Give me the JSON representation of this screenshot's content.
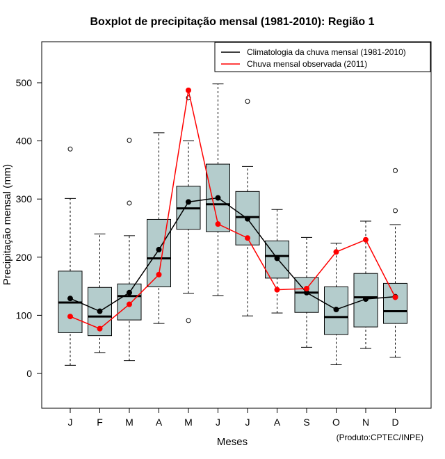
{
  "chart_data": {
    "type": "boxplot",
    "title": "Boxplot de precipitação mensal (1981-2010): Região 1",
    "xlabel": "Meses",
    "ylabel": "Precipitação mensal (mm)",
    "ylim": [
      -60,
      570
    ],
    "yticks": [
      0,
      100,
      200,
      300,
      400,
      500
    ],
    "categories": [
      "J",
      "F",
      "M",
      "A",
      "M",
      "J",
      "J",
      "A",
      "S",
      "O",
      "N",
      "D"
    ],
    "boxes": [
      {
        "min": 14,
        "q1": 70,
        "median": 122,
        "q3": 176,
        "max": 301,
        "outliers": [
          386
        ]
      },
      {
        "min": 36,
        "q1": 65,
        "median": 98,
        "q3": 148,
        "max": 240,
        "outliers": []
      },
      {
        "min": 22,
        "q1": 92,
        "median": 133,
        "q3": 154,
        "max": 237,
        "outliers": [
          293,
          401
        ]
      },
      {
        "min": 86,
        "q1": 149,
        "median": 198,
        "q3": 265,
        "max": 414,
        "outliers": []
      },
      {
        "min": 138,
        "q1": 248,
        "median": 284,
        "q3": 322,
        "max": 400,
        "outliers": [
          91,
          474
        ]
      },
      {
        "min": 134,
        "q1": 244,
        "median": 291,
        "q3": 360,
        "max": 498,
        "outliers": []
      },
      {
        "min": 99,
        "q1": 221,
        "median": 269,
        "q3": 313,
        "max": 356,
        "outliers": [
          468
        ]
      },
      {
        "min": 104,
        "q1": 164,
        "median": 202,
        "q3": 228,
        "max": 282,
        "outliers": []
      },
      {
        "min": 45,
        "q1": 105,
        "median": 139,
        "q3": 165,
        "max": 234,
        "outliers": []
      },
      {
        "min": 15,
        "q1": 67,
        "median": 97,
        "q3": 149,
        "max": 224,
        "outliers": []
      },
      {
        "min": 43,
        "q1": 80,
        "median": 131,
        "q3": 172,
        "max": 262,
        "outliers": []
      },
      {
        "min": 28,
        "q1": 86,
        "median": 107,
        "q3": 155,
        "max": 256,
        "outliers": [
          280,
          349
        ]
      }
    ],
    "series": [
      {
        "name": "Climatologia da chuva mensal (1981-2010)",
        "color": "#000000",
        "values": [
          129,
          107,
          139,
          213,
          295,
          302,
          266,
          198,
          139,
          110,
          128,
          132
        ]
      },
      {
        "name": "Chuva mensal observada (2011)",
        "color": "#ff0000",
        "values": [
          98,
          77,
          119,
          170,
          487,
          257,
          233,
          144,
          146,
          209,
          230,
          131
        ]
      }
    ],
    "legend_position": "top-right",
    "box_color": "#b4cccc",
    "credit": "(Produto:CPTEC/INPE)"
  }
}
